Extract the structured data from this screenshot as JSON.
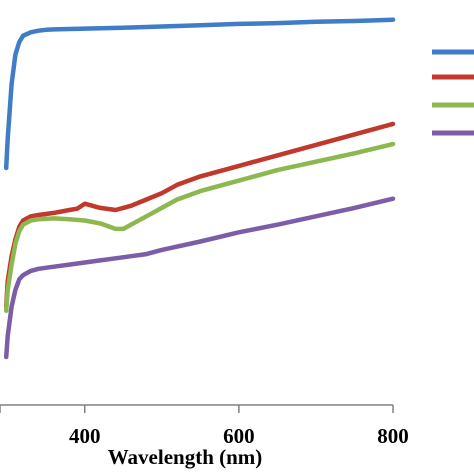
{
  "chart_data": {
    "type": "line",
    "xlabel": "Wavelength (nm)",
    "xlim": [
      290,
      800
    ],
    "ylim": [
      0,
      100
    ],
    "x_ticks": [
      400,
      600,
      800
    ],
    "y_axis_visible": false,
    "grid": false,
    "legend": {
      "position": "right",
      "entries_visible": 4,
      "labels_visible": false
    },
    "series": [
      {
        "color": "#3f7dc8",
        "x": [
          298,
          300,
          305,
          310,
          315,
          320,
          330,
          340,
          350,
          360,
          380,
          400,
          450,
          500,
          550,
          600,
          650,
          700,
          750,
          800
        ],
        "y": [
          60,
          67,
          80,
          87,
          90,
          91.5,
          92.3,
          92.7,
          92.9,
          93.0,
          93.1,
          93.2,
          93.4,
          93.7,
          94.0,
          94.3,
          94.5,
          94.8,
          95.0,
          95.3
        ]
      },
      {
        "color": "#c0392b",
        "x": [
          298,
          300,
          305,
          310,
          315,
          320,
          330,
          340,
          360,
          380,
          390,
          400,
          420,
          440,
          460,
          480,
          500,
          520,
          550,
          600,
          650,
          700,
          750,
          800
        ],
        "y": [
          27,
          33,
          39,
          43,
          46,
          47.5,
          48.5,
          48.8,
          49.3,
          50,
          50.3,
          51.5,
          50.5,
          50,
          51,
          52.5,
          54,
          56,
          58,
          60.5,
          63,
          65.5,
          68,
          70.5
        ]
      },
      {
        "color": "#8cb84f",
        "x": [
          298,
          300,
          305,
          310,
          315,
          320,
          330,
          340,
          360,
          380,
          400,
          420,
          440,
          450,
          460,
          480,
          500,
          520,
          550,
          600,
          650,
          700,
          750,
          800
        ],
        "y": [
          26,
          31,
          37,
          42,
          45,
          46.5,
          47.5,
          47.8,
          48,
          47.8,
          47.5,
          46.8,
          45.5,
          45.5,
          46.5,
          48.5,
          50.5,
          52.5,
          54.5,
          57,
          59.5,
          61.5,
          63.5,
          65.7
        ]
      },
      {
        "color": "#7b5ea7",
        "x": [
          298,
          300,
          305,
          310,
          315,
          320,
          330,
          340,
          360,
          380,
          400,
          420,
          440,
          460,
          480,
          500,
          550,
          600,
          650,
          700,
          750,
          800
        ],
        "y": [
          15,
          20,
          27,
          31,
          33.5,
          34.5,
          35.5,
          36,
          36.5,
          37,
          37.5,
          38,
          38.5,
          39,
          39.5,
          40.5,
          42.5,
          44.7,
          46.5,
          48.5,
          50.5,
          52.7
        ]
      }
    ]
  }
}
